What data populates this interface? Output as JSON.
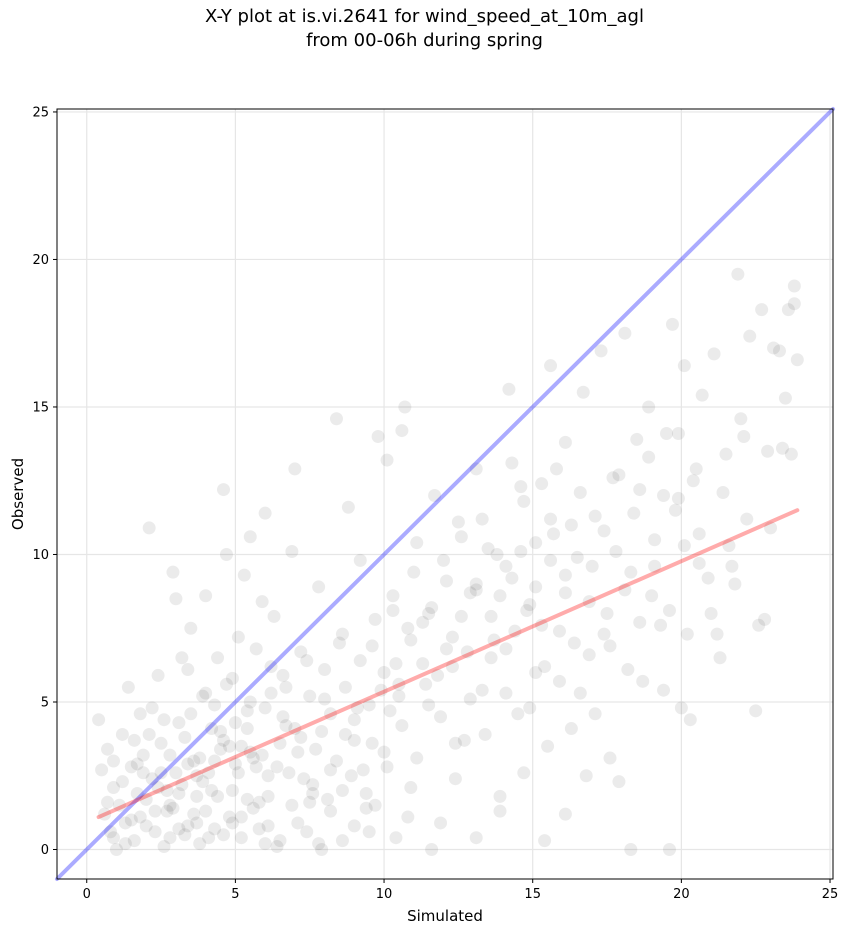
{
  "chart_data": {
    "type": "scatter",
    "title_line1": "X-Y plot at is.vi.2641 for wind_speed_at_10m_agl",
    "title_line2": "from 00-06h during spring",
    "xlabel": "Simulated",
    "ylabel": "Observed",
    "xlim": [
      -1,
      25.1
    ],
    "ylim": [
      -1,
      25.1
    ],
    "xticks": [
      0,
      5,
      10,
      15,
      20,
      25
    ],
    "yticks": [
      0,
      5,
      10,
      15,
      20,
      25
    ],
    "grid": true,
    "point_color": "#000000",
    "point_alpha": 0.08,
    "identity_line": {
      "x": [
        -1,
        25.1
      ],
      "y": [
        -1,
        25.1
      ],
      "color": "#0000ff",
      "alpha": 0.33
    },
    "fit_line": {
      "x": [
        0.4,
        23.9
      ],
      "y": [
        1.1,
        11.5
      ],
      "color": "#ff0000",
      "alpha": 0.33
    },
    "points": [
      [
        0.4,
        4.4
      ],
      [
        0.5,
        2.7
      ],
      [
        0.6,
        1.2
      ],
      [
        0.7,
        3.4
      ],
      [
        0.8,
        0.6
      ],
      [
        0.9,
        2.1
      ],
      [
        1.0,
        0.0
      ],
      [
        1.1,
        1.5
      ],
      [
        1.2,
        3.9
      ],
      [
        1.3,
        0.9
      ],
      [
        1.4,
        5.5
      ],
      [
        1.5,
        2.8
      ],
      [
        1.6,
        0.3
      ],
      [
        1.7,
        1.9
      ],
      [
        1.8,
        4.6
      ],
      [
        1.9,
        3.2
      ],
      [
        2.0,
        0.8
      ],
      [
        2.1,
        10.9
      ],
      [
        2.2,
        2.4
      ],
      [
        2.3,
        1.3
      ],
      [
        2.4,
        5.9
      ],
      [
        2.5,
        3.6
      ],
      [
        2.6,
        0.1
      ],
      [
        2.7,
        1.3
      ],
      [
        2.8,
        1.5
      ],
      [
        2.9,
        9.4
      ],
      [
        3.0,
        8.5
      ],
      [
        3.1,
        4.3
      ],
      [
        3.2,
        2.2
      ],
      [
        3.3,
        0.5
      ],
      [
        3.4,
        6.1
      ],
      [
        3.5,
        7.5
      ],
      [
        3.6,
        3.0
      ],
      [
        3.7,
        1.8
      ],
      [
        3.8,
        0.2
      ],
      [
        3.9,
        5.2
      ],
      [
        4.0,
        8.6
      ],
      [
        4.1,
        2.6
      ],
      [
        4.2,
        4.1
      ],
      [
        4.3,
        0.7
      ],
      [
        4.4,
        6.5
      ],
      [
        4.5,
        3.4
      ],
      [
        4.6,
        12.2
      ],
      [
        4.7,
        10.0
      ],
      [
        4.8,
        1.1
      ],
      [
        4.9,
        5.8
      ],
      [
        5.0,
        2.9
      ],
      [
        5.1,
        7.2
      ],
      [
        5.2,
        0.4
      ],
      [
        5.3,
        9.3
      ],
      [
        5.4,
        4.7
      ],
      [
        5.5,
        10.6
      ],
      [
        5.6,
        3.1
      ],
      [
        5.7,
        6.8
      ],
      [
        5.8,
        1.6
      ],
      [
        5.9,
        8.4
      ],
      [
        6.0,
        11.4
      ],
      [
        6.1,
        2.5
      ],
      [
        6.2,
        5.3
      ],
      [
        6.3,
        7.9
      ],
      [
        6.5,
        0.3
      ],
      [
        6.7,
        4.2
      ],
      [
        6.9,
        10.1
      ],
      [
        7.0,
        12.9
      ],
      [
        7.2,
        3.8
      ],
      [
        7.4,
        6.4
      ],
      [
        7.6,
        1.9
      ],
      [
        7.8,
        8.9
      ],
      [
        8.0,
        5.1
      ],
      [
        8.2,
        2.7
      ],
      [
        8.4,
        14.6
      ],
      [
        8.6,
        7.3
      ],
      [
        8.8,
        11.6
      ],
      [
        9.0,
        4.4
      ],
      [
        9.2,
        9.8
      ],
      [
        9.4,
        1.4
      ],
      [
        9.6,
        6.9
      ],
      [
        9.8,
        14.0
      ],
      [
        10.0,
        3.3
      ],
      [
        10.1,
        13.2
      ],
      [
        10.3,
        8.1
      ],
      [
        10.5,
        5.6
      ],
      [
        10.6,
        14.2
      ],
      [
        10.7,
        15.0
      ],
      [
        10.9,
        2.1
      ],
      [
        11.1,
        10.4
      ],
      [
        11.3,
        7.7
      ],
      [
        11.5,
        4.9
      ],
      [
        11.7,
        12.0
      ],
      [
        11.9,
        0.9
      ],
      [
        12.1,
        9.1
      ],
      [
        12.3,
        6.2
      ],
      [
        12.5,
        11.1
      ],
      [
        12.7,
        3.7
      ],
      [
        12.9,
        8.7
      ],
      [
        13.1,
        12.9
      ],
      [
        13.3,
        5.4
      ],
      [
        13.5,
        10.2
      ],
      [
        13.7,
        7.1
      ],
      [
        13.9,
        1.8
      ],
      [
        14.1,
        9.6
      ],
      [
        14.2,
        15.6
      ],
      [
        14.3,
        13.1
      ],
      [
        14.5,
        4.6
      ],
      [
        14.7,
        11.8
      ],
      [
        14.9,
        8.3
      ],
      [
        15.1,
        6.0
      ],
      [
        15.3,
        12.4
      ],
      [
        15.5,
        3.5
      ],
      [
        15.6,
        16.4
      ],
      [
        15.7,
        10.7
      ],
      [
        15.9,
        7.4
      ],
      [
        16.1,
        13.8
      ],
      [
        16.3,
        4.1
      ],
      [
        16.5,
        9.9
      ],
      [
        16.7,
        15.5
      ],
      [
        16.9,
        6.6
      ],
      [
        17.1,
        11.3
      ],
      [
        17.3,
        16.9
      ],
      [
        17.5,
        8.0
      ],
      [
        17.7,
        12.6
      ],
      [
        17.9,
        2.3
      ],
      [
        18.1,
        17.5
      ],
      [
        18.3,
        9.4
      ],
      [
        18.5,
        13.9
      ],
      [
        18.7,
        5.7
      ],
      [
        18.9,
        15.0
      ],
      [
        19.1,
        10.5
      ],
      [
        19.3,
        7.6
      ],
      [
        19.5,
        14.1
      ],
      [
        19.7,
        17.8
      ],
      [
        19.9,
        11.9
      ],
      [
        20.1,
        16.4
      ],
      [
        20.3,
        4.4
      ],
      [
        20.5,
        12.9
      ],
      [
        20.7,
        15.4
      ],
      [
        20.9,
        9.2
      ],
      [
        21.1,
        16.8
      ],
      [
        21.3,
        6.5
      ],
      [
        21.5,
        13.4
      ],
      [
        21.7,
        9.6
      ],
      [
        21.9,
        19.5
      ],
      [
        22.1,
        14.0
      ],
      [
        22.3,
        17.4
      ],
      [
        22.5,
        4.7
      ],
      [
        22.7,
        18.3
      ],
      [
        22.9,
        13.5
      ],
      [
        23.1,
        17.0
      ],
      [
        23.3,
        16.9
      ],
      [
        23.5,
        15.3
      ],
      [
        23.6,
        18.3
      ],
      [
        23.8,
        19.1
      ],
      [
        23.9,
        16.6
      ],
      [
        23.7,
        13.4
      ],
      [
        23.8,
        18.5
      ],
      [
        22.8,
        7.8
      ],
      [
        21.2,
        7.3
      ],
      [
        20.0,
        4.8
      ],
      [
        19.6,
        0.0
      ],
      [
        18.3,
        0.0
      ],
      [
        17.6,
        3.1
      ],
      [
        16.8,
        2.5
      ],
      [
        16.1,
        1.2
      ],
      [
        15.4,
        0.3
      ],
      [
        14.7,
        2.6
      ],
      [
        13.9,
        1.3
      ],
      [
        13.1,
        0.4
      ],
      [
        12.4,
        3.6
      ],
      [
        11.6,
        0.0
      ],
      [
        10.8,
        1.1
      ],
      [
        10.2,
        4.7
      ],
      [
        9.5,
        0.6
      ],
      [
        8.7,
        3.9
      ],
      [
        7.9,
        0.0
      ],
      [
        7.3,
        2.4
      ],
      [
        6.6,
        5.9
      ],
      [
        6.0,
        0.2
      ],
      [
        5.4,
        1.7
      ],
      [
        4.8,
        3.5
      ],
      [
        4.3,
        4.9
      ],
      [
        3.7,
        0.9
      ],
      [
        3.2,
        6.5
      ],
      [
        2.7,
        2.0
      ],
      [
        2.2,
        4.8
      ],
      [
        1.8,
        1.1
      ],
      [
        1.3,
        0.2
      ],
      [
        0.9,
        3.0
      ],
      [
        0.7,
        1.6
      ],
      [
        2.9,
        1.4
      ],
      [
        3.1,
        0.7
      ],
      [
        3.4,
        2.9
      ],
      [
        3.6,
        1.2
      ],
      [
        3.9,
        2.3
      ],
      [
        4.1,
        0.4
      ],
      [
        4.4,
        1.8
      ],
      [
        4.6,
        3.7
      ],
      [
        4.9,
        0.9
      ],
      [
        5.1,
        2.6
      ],
      [
        5.4,
        4.1
      ],
      [
        5.6,
        1.4
      ],
      [
        5.9,
        3.2
      ],
      [
        6.1,
        0.8
      ],
      [
        6.4,
        2.8
      ],
      [
        6.6,
        4.5
      ],
      [
        6.9,
        1.5
      ],
      [
        7.1,
        3.3
      ],
      [
        7.4,
        0.6
      ],
      [
        7.6,
        2.2
      ],
      [
        7.9,
        4.0
      ],
      [
        8.1,
        1.7
      ],
      [
        8.4,
        3.0
      ],
      [
        8.6,
        0.3
      ],
      [
        8.9,
        2.5
      ],
      [
        9.1,
        4.8
      ],
      [
        9.4,
        1.9
      ],
      [
        9.6,
        3.6
      ],
      [
        9.9,
        5.4
      ],
      [
        10.1,
        2.8
      ],
      [
        10.4,
        6.3
      ],
      [
        10.6,
        4.2
      ],
      [
        10.9,
        7.1
      ],
      [
        11.1,
        3.1
      ],
      [
        11.4,
        5.6
      ],
      [
        11.6,
        8.2
      ],
      [
        11.9,
        4.5
      ],
      [
        12.1,
        6.8
      ],
      [
        12.4,
        2.4
      ],
      [
        12.6,
        7.9
      ],
      [
        12.9,
        5.1
      ],
      [
        13.1,
        9.0
      ],
      [
        13.4,
        3.9
      ],
      [
        13.6,
        6.5
      ],
      [
        13.9,
        8.6
      ],
      [
        14.1,
        5.3
      ],
      [
        14.4,
        7.4
      ],
      [
        14.6,
        10.1
      ],
      [
        14.9,
        4.8
      ],
      [
        15.1,
        8.9
      ],
      [
        15.4,
        6.2
      ],
      [
        15.6,
        11.2
      ],
      [
        15.9,
        5.7
      ],
      [
        16.1,
        9.3
      ],
      [
        16.4,
        7.0
      ],
      [
        16.6,
        12.1
      ],
      [
        16.9,
        8.4
      ],
      [
        17.1,
        4.6
      ],
      [
        17.4,
        10.8
      ],
      [
        17.6,
        6.9
      ],
      [
        17.9,
        12.7
      ],
      [
        18.1,
        8.8
      ],
      [
        18.4,
        11.4
      ],
      [
        18.6,
        7.7
      ],
      [
        18.9,
        13.3
      ],
      [
        19.1,
        9.6
      ],
      [
        19.4,
        12.0
      ],
      [
        19.6,
        8.1
      ],
      [
        19.9,
        14.1
      ],
      [
        20.1,
        10.3
      ],
      [
        20.4,
        12.5
      ],
      [
        20.6,
        9.7
      ],
      [
        1.6,
        3.7
      ],
      [
        1.9,
        2.6
      ],
      [
        2.1,
        3.9
      ],
      [
        2.4,
        2.1
      ],
      [
        2.6,
        4.4
      ],
      [
        2.8,
        3.2
      ],
      [
        3.0,
        2.6
      ],
      [
        3.3,
        3.8
      ],
      [
        3.5,
        4.6
      ],
      [
        3.8,
        3.1
      ],
      [
        4.0,
        5.3
      ],
      [
        4.2,
        2.0
      ],
      [
        4.5,
        4.0
      ],
      [
        4.7,
        5.6
      ],
      [
        5.0,
        4.3
      ],
      [
        5.2,
        3.5
      ],
      [
        5.5,
        5.0
      ],
      [
        5.7,
        2.8
      ],
      [
        6.0,
        4.8
      ],
      [
        6.2,
        6.2
      ],
      [
        6.5,
        3.6
      ],
      [
        6.7,
        5.5
      ],
      [
        7.0,
        4.1
      ],
      [
        7.2,
        6.7
      ],
      [
        7.5,
        5.2
      ],
      [
        7.7,
        3.4
      ],
      [
        8.0,
        6.1
      ],
      [
        8.2,
        4.6
      ],
      [
        8.5,
        7.0
      ],
      [
        8.7,
        5.5
      ],
      [
        9.0,
        3.7
      ],
      [
        9.2,
        6.4
      ],
      [
        9.5,
        4.9
      ],
      [
        9.7,
        7.8
      ],
      [
        10.0,
        6.0
      ],
      [
        10.3,
        8.6
      ],
      [
        10.5,
        5.2
      ],
      [
        10.8,
        7.5
      ],
      [
        11.0,
        9.4
      ],
      [
        11.3,
        6.3
      ],
      [
        11.5,
        8.0
      ],
      [
        11.8,
        5.9
      ],
      [
        12.0,
        9.8
      ],
      [
        12.3,
        7.2
      ],
      [
        12.6,
        10.6
      ],
      [
        12.8,
        6.7
      ],
      [
        13.1,
        8.8
      ],
      [
        13.3,
        11.2
      ],
      [
        13.6,
        7.9
      ],
      [
        13.8,
        10.0
      ],
      [
        14.1,
        6.8
      ],
      [
        14.3,
        9.2
      ],
      [
        14.6,
        12.3
      ],
      [
        14.8,
        8.1
      ],
      [
        15.1,
        10.4
      ],
      [
        15.3,
        7.6
      ],
      [
        15.6,
        9.8
      ],
      [
        15.8,
        12.9
      ],
      [
        16.1,
        8.7
      ],
      [
        16.3,
        11.0
      ],
      [
        0.9,
        0.4
      ],
      [
        1.2,
        2.3
      ],
      [
        1.5,
        1.0
      ],
      [
        1.7,
        2.9
      ],
      [
        2.0,
        1.7
      ],
      [
        2.3,
        0.6
      ],
      [
        2.5,
        2.6
      ],
      [
        2.8,
        0.4
      ],
      [
        3.1,
        1.9
      ],
      [
        3.4,
        0.8
      ],
      [
        3.7,
        2.5
      ],
      [
        4.0,
        1.3
      ],
      [
        4.3,
        3.0
      ],
      [
        4.6,
        0.5
      ],
      [
        4.9,
        2.0
      ],
      [
        5.2,
        1.1
      ],
      [
        5.5,
        3.3
      ],
      [
        5.8,
        0.7
      ],
      [
        6.1,
        1.8
      ],
      [
        6.4,
        0.1
      ],
      [
        6.8,
        2.6
      ],
      [
        7.1,
        0.9
      ],
      [
        7.5,
        1.6
      ],
      [
        7.8,
        0.2
      ],
      [
        8.2,
        1.3
      ],
      [
        8.6,
        2.0
      ],
      [
        9.0,
        0.8
      ],
      [
        9.3,
        2.7
      ],
      [
        9.7,
        1.5
      ],
      [
        10.4,
        0.4
      ],
      [
        16.6,
        5.3
      ],
      [
        17.0,
        9.6
      ],
      [
        17.4,
        7.3
      ],
      [
        17.8,
        10.1
      ],
      [
        18.2,
        6.1
      ],
      [
        18.6,
        12.2
      ],
      [
        19.0,
        8.6
      ],
      [
        19.4,
        5.4
      ],
      [
        19.8,
        11.5
      ],
      [
        20.2,
        7.3
      ],
      [
        20.6,
        10.7
      ],
      [
        21.0,
        8.0
      ],
      [
        21.4,
        12.1
      ],
      [
        21.8,
        9.0
      ],
      [
        22.2,
        11.2
      ],
      [
        22.6,
        7.6
      ],
      [
        23.0,
        10.9
      ],
      [
        23.4,
        13.6
      ],
      [
        22.0,
        14.6
      ],
      [
        21.6,
        10.3
      ]
    ]
  }
}
